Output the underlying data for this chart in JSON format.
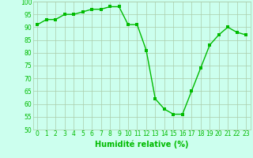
{
  "x": [
    0,
    1,
    2,
    3,
    4,
    5,
    6,
    7,
    8,
    9,
    10,
    11,
    12,
    13,
    14,
    15,
    16,
    17,
    18,
    19,
    20,
    21,
    22,
    23
  ],
  "y": [
    91,
    93,
    93,
    95,
    95,
    96,
    97,
    97,
    98,
    98,
    91,
    91,
    81,
    62,
    58,
    56,
    56,
    65,
    74,
    83,
    87,
    90,
    88,
    87
  ],
  "line_color": "#00bb00",
  "marker_color": "#00bb00",
  "bg_color": "#ccffee",
  "grid_color": "#aaccaa",
  "xlabel": "Humidité relative (%)",
  "xlabel_color": "#00bb00",
  "ylim": [
    50,
    100
  ],
  "xlim": [
    -0.5,
    23.5
  ],
  "yticks": [
    50,
    55,
    60,
    65,
    70,
    75,
    80,
    85,
    90,
    95,
    100
  ],
  "xticks": [
    0,
    1,
    2,
    3,
    4,
    5,
    6,
    7,
    8,
    9,
    10,
    11,
    12,
    13,
    14,
    15,
    16,
    17,
    18,
    19,
    20,
    21,
    22,
    23
  ],
  "tick_label_fontsize": 5.5,
  "xlabel_fontsize": 7,
  "marker_size": 2.5,
  "line_width": 1.0
}
